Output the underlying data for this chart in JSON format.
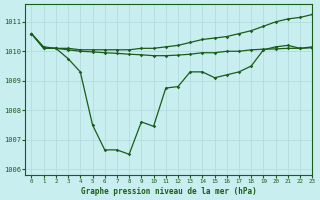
{
  "title": "Graphe pression niveau de la mer (hPa)",
  "background_color": "#c8eef0",
  "line_color": "#1a5c1a",
  "grid_color": "#b0d8da",
  "xlim": [
    -0.5,
    23
  ],
  "ylim": [
    1005.8,
    1011.6
  ],
  "yticks": [
    1006,
    1007,
    1008,
    1009,
    1010,
    1011
  ],
  "xticks": [
    0,
    1,
    2,
    3,
    4,
    5,
    6,
    7,
    8,
    9,
    10,
    11,
    12,
    13,
    14,
    15,
    16,
    17,
    18,
    19,
    20,
    21,
    22,
    23
  ],
  "series_main": [
    1010.6,
    1010.15,
    1010.1,
    1009.75,
    1009.3,
    1007.5,
    1006.65,
    1006.65,
    1006.5,
    1007.6,
    1007.45,
    1008.75,
    1008.8,
    1009.3,
    1009.3,
    1009.1,
    1009.2,
    1009.3,
    1009.5,
    1010.05,
    1010.15,
    1010.2,
    1010.1,
    1010.15
  ],
  "series_upper": [
    1010.6,
    1010.1,
    1010.1,
    1010.1,
    1010.05,
    1010.05,
    1010.05,
    1010.05,
    1010.05,
    1010.1,
    1010.1,
    1010.15,
    1010.2,
    1010.3,
    1010.4,
    1010.45,
    1010.5,
    1010.6,
    1010.7,
    1010.85,
    1011.0,
    1011.1,
    1011.15,
    1011.25
  ],
  "series_mid": [
    1010.6,
    1010.1,
    1010.1,
    1010.05,
    1010.0,
    1009.98,
    1009.95,
    1009.93,
    1009.9,
    1009.88,
    1009.85,
    1009.85,
    1009.87,
    1009.9,
    1009.95,
    1009.95,
    1010.0,
    1010.0,
    1010.05,
    1010.07,
    1010.08,
    1010.1,
    1010.1,
    1010.12
  ]
}
